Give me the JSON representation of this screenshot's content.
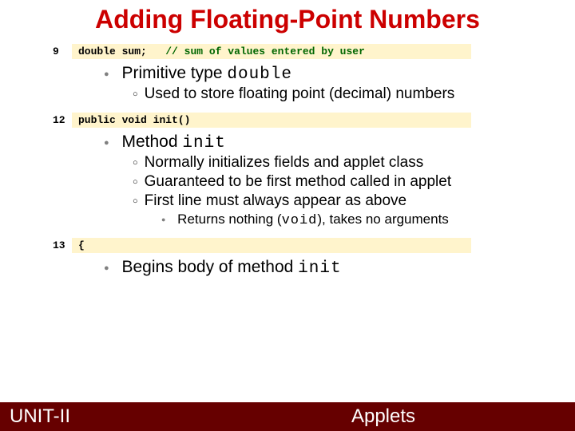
{
  "colors": {
    "title": "#cc0000",
    "footer_bg": "#660000",
    "footer_text": "#ffffff",
    "code_bg": "#fff4cc",
    "code_comment": "#006600",
    "code_normal": "#000000",
    "bullet_gray": "#808080",
    "text": "#000000"
  },
  "title": "Adding Floating-Point Numbers",
  "code1": {
    "num": "9",
    "kw": "double",
    "var": "sum;",
    "comment": "// sum of values entered by user"
  },
  "bullets1": {
    "l1": "Primitive type ",
    "l1mono": "double",
    "l2": "Used to store floating point (decimal) numbers"
  },
  "code2": {
    "num": "12",
    "kw1": "public",
    "kw2": "void",
    "fn": "init",
    "paren": "()"
  },
  "bullets2": {
    "l1": "Method ",
    "l1mono": "init",
    "l2a": "Normally initializes fields and applet class",
    "l2b": "Guaranteed to be first method called in applet",
    "l2c": "First line must always appear as above",
    "l3": "Returns nothing (",
    "l3mono": "void",
    "l3b": "), takes no arguments"
  },
  "code3": {
    "num": "13",
    "text": "{"
  },
  "bullets3": {
    "l1": "Begins body of method ",
    "l1mono": "init"
  },
  "footer": {
    "left": "UNIT-II",
    "center": "Applets"
  }
}
